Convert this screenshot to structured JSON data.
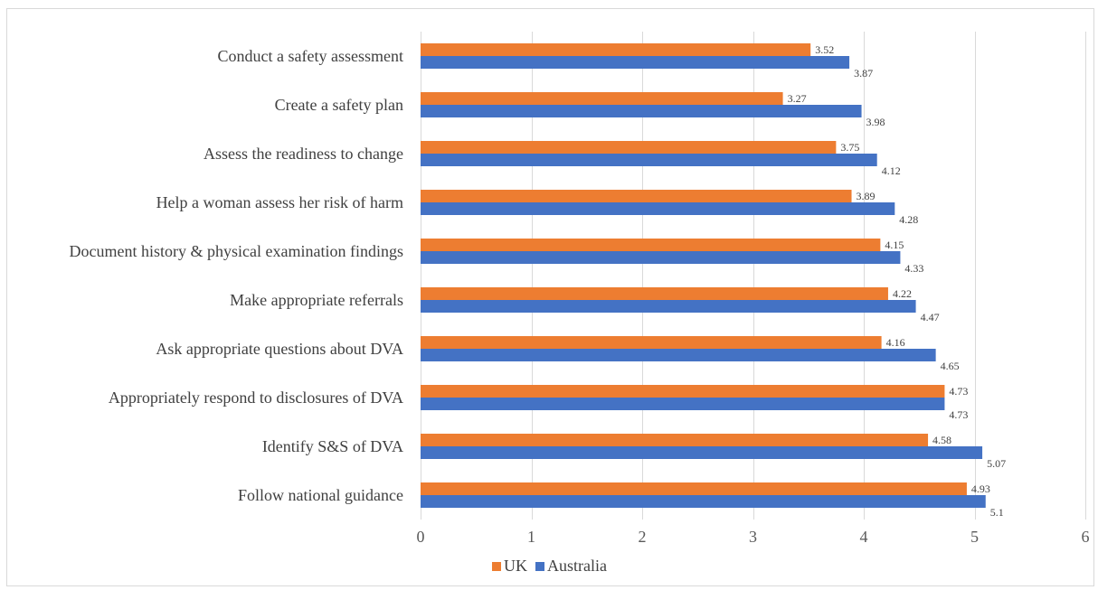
{
  "chart_data": {
    "type": "bar",
    "orientation": "horizontal",
    "categories": [
      "Conduct a safety assessment",
      "Create a safety plan",
      "Assess the readiness to change",
      "Help a woman assess her risk of harm",
      "Document history & physical examination findings",
      "Make appropriate referrals",
      "Ask appropriate questions about DVA",
      "Appropriately respond to disclosures of DVA",
      "Identify S&S of DVA",
      "Follow national guidance"
    ],
    "series": [
      {
        "name": "UK",
        "color": "#ed7d31",
        "values": [
          3.52,
          3.27,
          3.75,
          3.89,
          4.15,
          4.22,
          4.16,
          4.73,
          4.58,
          4.93
        ],
        "labels": [
          "3.52",
          "3.27",
          "3.75",
          "3.89",
          "4.15",
          "4.22",
          "4.16",
          "4.73",
          "4.58",
          "4.93"
        ]
      },
      {
        "name": "Australia",
        "color": "#4472c4",
        "values": [
          3.87,
          3.98,
          4.12,
          4.28,
          4.33,
          4.47,
          4.65,
          4.73,
          5.07,
          5.1
        ],
        "labels": [
          "3.87",
          "3.98",
          "4.12",
          "4.28",
          "4.33",
          "4.47",
          "4.65",
          "4.73",
          "5.07",
          "5.1"
        ]
      }
    ],
    "xlim": [
      0,
      6
    ],
    "xticks": [
      "0",
      "1",
      "2",
      "3",
      "4",
      "5",
      "6"
    ],
    "grid": true,
    "grid_color": "#d9d9d9",
    "legend_position": "bottom",
    "title": "",
    "xlabel": "",
    "ylabel": ""
  }
}
